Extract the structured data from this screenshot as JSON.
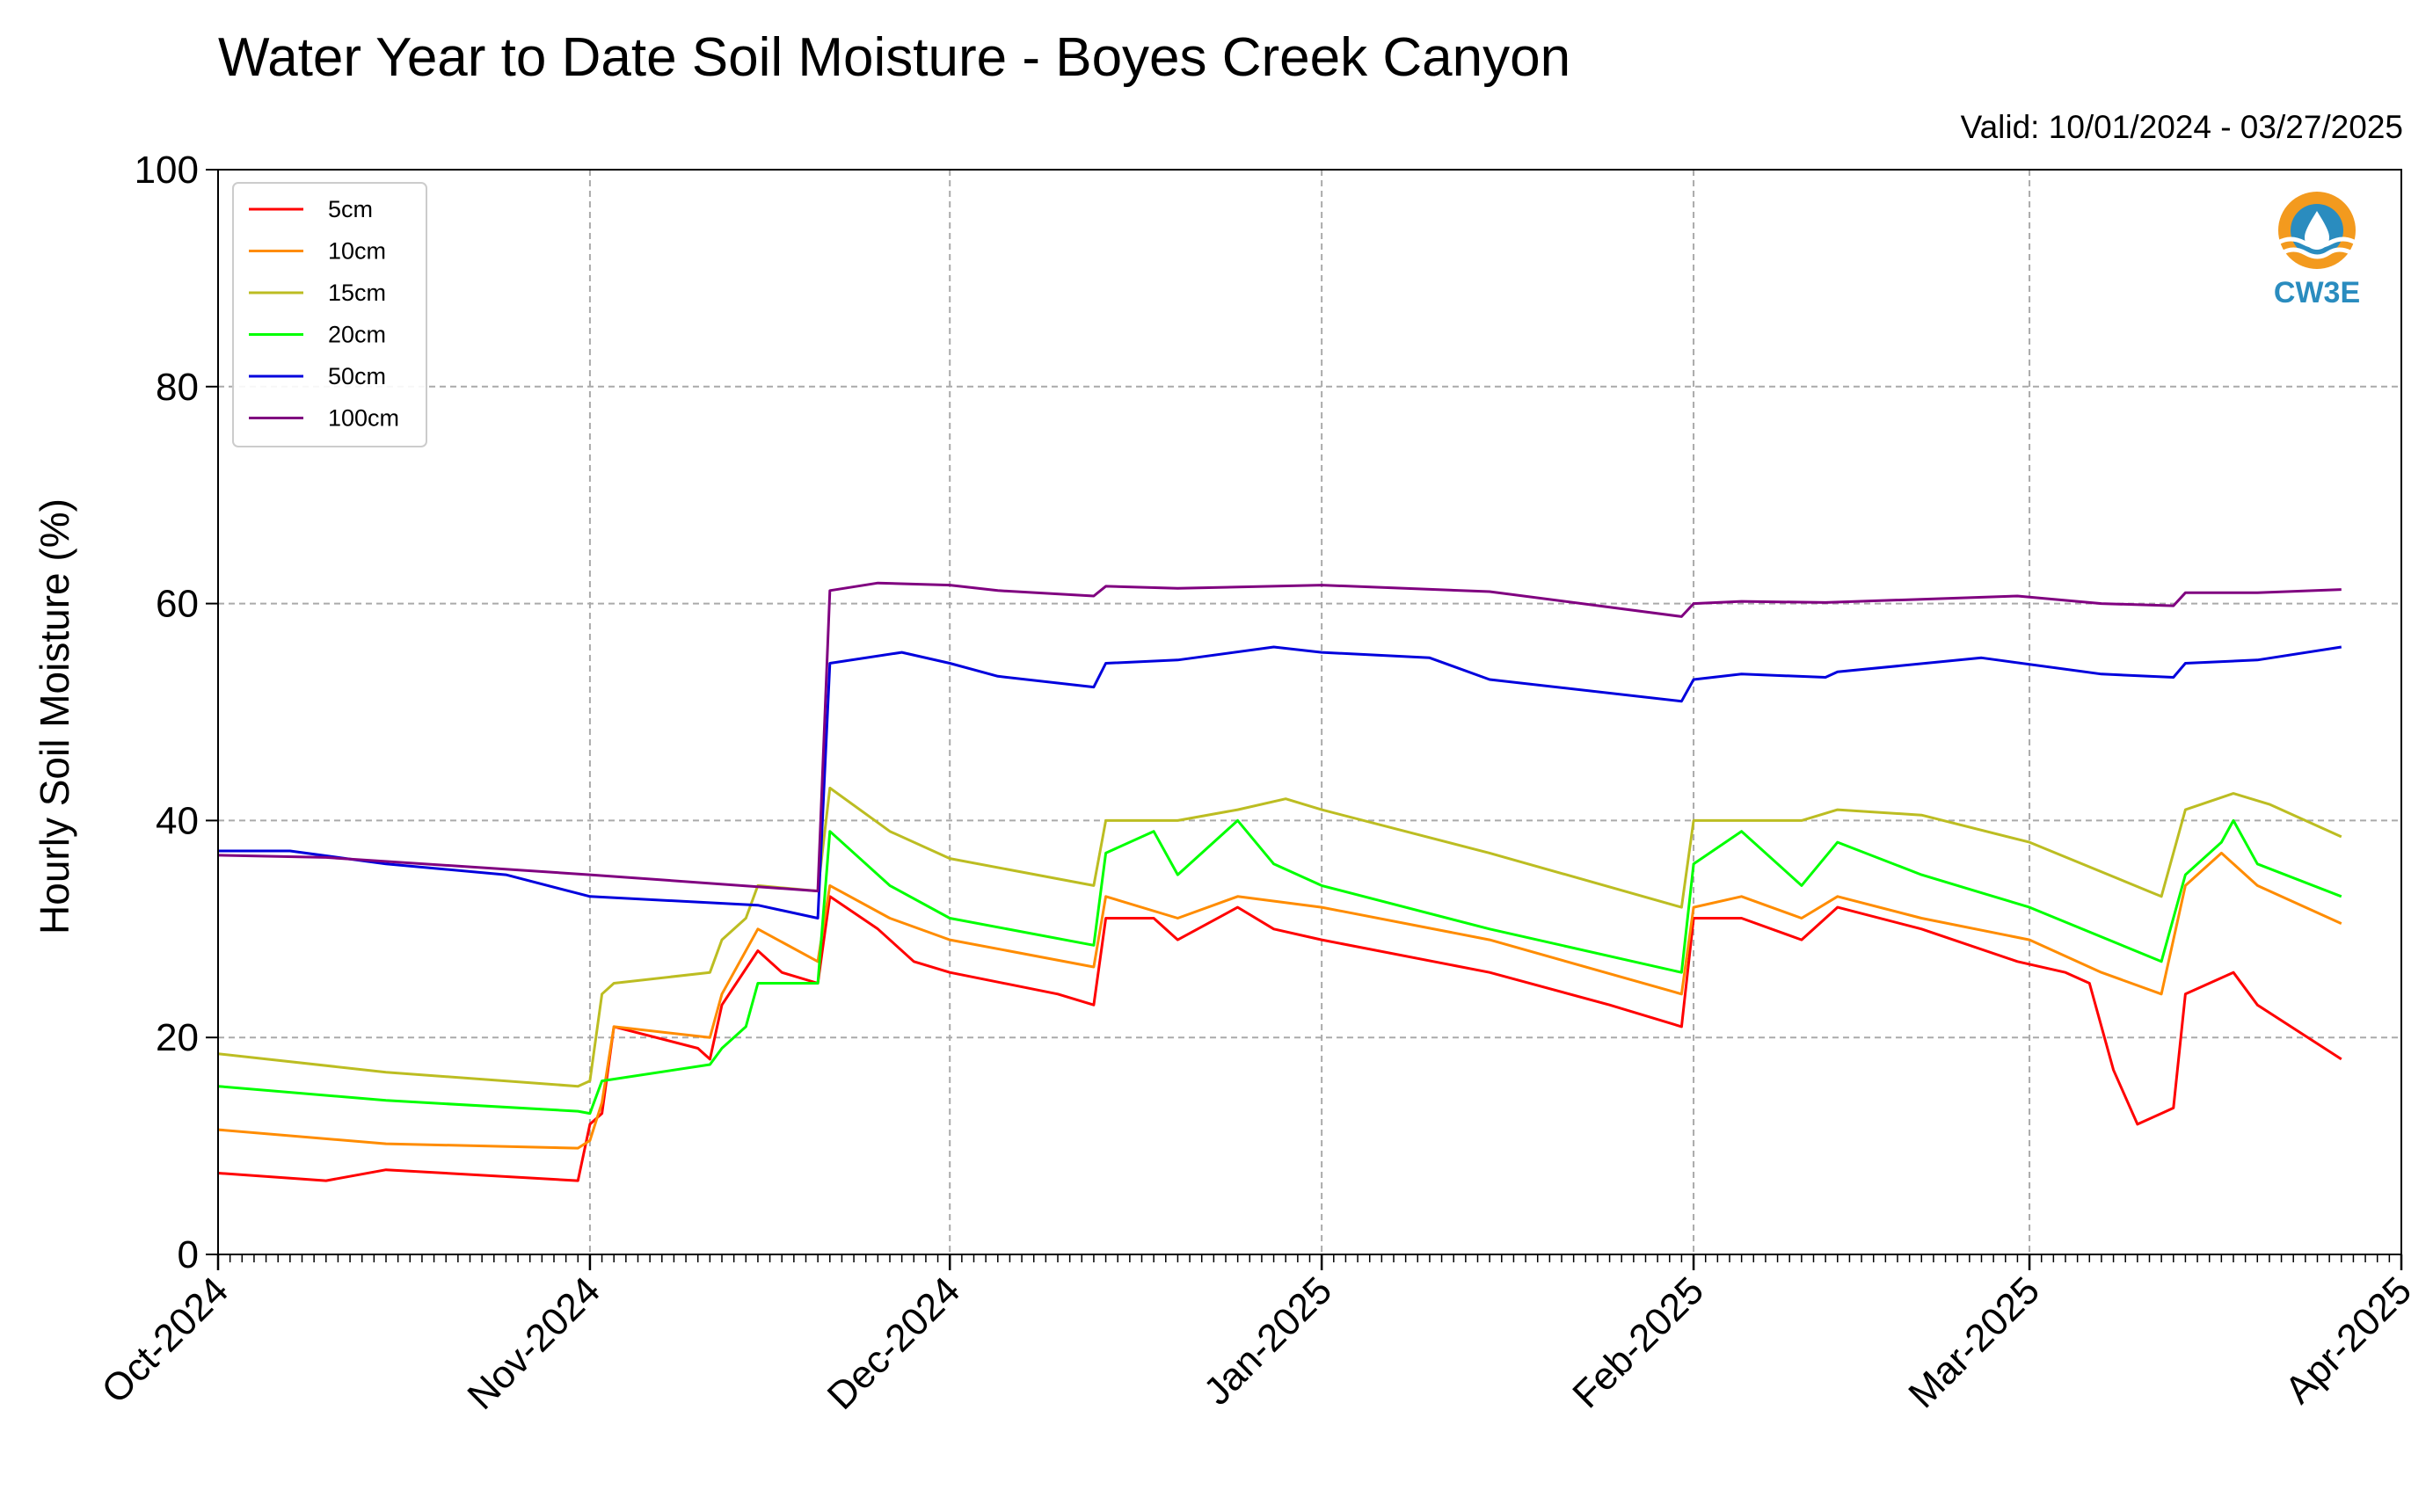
{
  "chart_data": {
    "type": "line",
    "title": "Water Year to Date Soil Moisture - Boyes Creek Canyon",
    "subtitle": "Valid: 10/01/2024 - 03/27/2025",
    "ylabel": "Hourly Soil Moisture (%)",
    "xlabel": "",
    "ylim": [
      0,
      100
    ],
    "yticks": [
      0,
      20,
      40,
      60,
      80,
      100
    ],
    "xlim": [
      "2024-10-01",
      "2025-04-01"
    ],
    "xticks": [
      {
        "date": "2024-10-01",
        "label": "Oct-2024"
      },
      {
        "date": "2024-11-01",
        "label": "Nov-2024"
      },
      {
        "date": "2024-12-01",
        "label": "Dec-2024"
      },
      {
        "date": "2025-01-01",
        "label": "Jan-2025"
      },
      {
        "date": "2025-02-01",
        "label": "Feb-2025"
      },
      {
        "date": "2025-03-01",
        "label": "Mar-2025"
      },
      {
        "date": "2025-04-01",
        "label": "Apr-2025"
      }
    ],
    "grid": true,
    "legend_position": "top-left",
    "series": [
      {
        "name": "5cm",
        "color": "#ff0000",
        "points": [
          [
            "2024-10-01",
            7.5
          ],
          [
            "2024-10-10",
            6.8
          ],
          [
            "2024-10-15",
            7.8
          ],
          [
            "2024-10-31",
            6.8
          ],
          [
            "2024-11-01",
            12
          ],
          [
            "2024-11-02",
            13
          ],
          [
            "2024-11-03",
            21
          ],
          [
            "2024-11-10",
            19
          ],
          [
            "2024-11-11",
            18
          ],
          [
            "2024-11-12",
            23
          ],
          [
            "2024-11-15",
            28
          ],
          [
            "2024-11-17",
            26
          ],
          [
            "2024-11-20",
            25
          ],
          [
            "2024-11-21",
            33
          ],
          [
            "2024-11-25",
            30
          ],
          [
            "2024-11-28",
            27
          ],
          [
            "2024-12-01",
            26
          ],
          [
            "2024-12-10",
            24
          ],
          [
            "2024-12-13",
            23
          ],
          [
            "2024-12-14",
            31
          ],
          [
            "2024-12-18",
            31
          ],
          [
            "2024-12-20",
            29
          ],
          [
            "2024-12-25",
            32
          ],
          [
            "2024-12-28",
            30
          ],
          [
            "2025-01-01",
            29
          ],
          [
            "2025-01-15",
            26
          ],
          [
            "2025-01-25",
            23
          ],
          [
            "2025-01-31",
            21
          ],
          [
            "2025-02-01",
            31
          ],
          [
            "2025-02-05",
            31
          ],
          [
            "2025-02-10",
            29
          ],
          [
            "2025-02-13",
            32
          ],
          [
            "2025-02-20",
            30
          ],
          [
            "2025-02-28",
            27
          ],
          [
            "2025-03-04",
            26
          ],
          [
            "2025-03-06",
            25
          ],
          [
            "2025-03-08",
            17
          ],
          [
            "2025-03-10",
            12
          ],
          [
            "2025-03-12",
            13
          ],
          [
            "2025-03-13",
            13.5
          ],
          [
            "2025-03-14",
            24
          ],
          [
            "2025-03-18",
            26
          ],
          [
            "2025-03-20",
            23
          ],
          [
            "2025-03-27",
            18
          ]
        ]
      },
      {
        "name": "10cm",
        "color": "#ff8c00",
        "points": [
          [
            "2024-10-01",
            11.5
          ],
          [
            "2024-10-15",
            10.2
          ],
          [
            "2024-10-31",
            9.8
          ],
          [
            "2024-11-01",
            10.5
          ],
          [
            "2024-11-02",
            14
          ],
          [
            "2024-11-03",
            21
          ],
          [
            "2024-11-11",
            20
          ],
          [
            "2024-11-12",
            24
          ],
          [
            "2024-11-15",
            30
          ],
          [
            "2024-11-20",
            27
          ],
          [
            "2024-11-21",
            34
          ],
          [
            "2024-11-26",
            31
          ],
          [
            "2024-12-01",
            29
          ],
          [
            "2024-12-13",
            26.5
          ],
          [
            "2024-12-14",
            33
          ],
          [
            "2024-12-20",
            31
          ],
          [
            "2024-12-25",
            33
          ],
          [
            "2025-01-01",
            32
          ],
          [
            "2025-01-15",
            29
          ],
          [
            "2025-01-31",
            24
          ],
          [
            "2025-02-01",
            32
          ],
          [
            "2025-02-05",
            33
          ],
          [
            "2025-02-10",
            31
          ],
          [
            "2025-02-13",
            33
          ],
          [
            "2025-02-20",
            31
          ],
          [
            "2025-03-01",
            29
          ],
          [
            "2025-03-07",
            26
          ],
          [
            "2025-03-12",
            24
          ],
          [
            "2025-03-14",
            34
          ],
          [
            "2025-03-17",
            37
          ],
          [
            "2025-03-20",
            34
          ],
          [
            "2025-03-27",
            30.5
          ]
        ]
      },
      {
        "name": "15cm",
        "color": "#bcbd22",
        "points": [
          [
            "2024-10-01",
            18.5
          ],
          [
            "2024-10-15",
            16.8
          ],
          [
            "2024-10-31",
            15.5
          ],
          [
            "2024-11-01",
            16
          ],
          [
            "2024-11-02",
            24
          ],
          [
            "2024-11-03",
            25
          ],
          [
            "2024-11-11",
            26
          ],
          [
            "2024-11-12",
            29
          ],
          [
            "2024-11-14",
            31
          ],
          [
            "2024-11-15",
            34
          ],
          [
            "2024-11-20",
            33.5
          ],
          [
            "2024-11-21",
            43
          ],
          [
            "2024-11-26",
            39
          ],
          [
            "2024-12-01",
            36.5
          ],
          [
            "2024-12-13",
            34
          ],
          [
            "2024-12-14",
            40
          ],
          [
            "2024-12-20",
            40
          ],
          [
            "2024-12-25",
            41
          ],
          [
            "2024-12-29",
            42
          ],
          [
            "2025-01-01",
            41
          ],
          [
            "2025-01-15",
            37
          ],
          [
            "2025-01-31",
            32
          ],
          [
            "2025-02-01",
            40
          ],
          [
            "2025-02-10",
            40
          ],
          [
            "2025-02-13",
            41
          ],
          [
            "2025-02-20",
            40.5
          ],
          [
            "2025-03-01",
            38
          ],
          [
            "2025-03-12",
            33
          ],
          [
            "2025-03-14",
            41
          ],
          [
            "2025-03-18",
            42.5
          ],
          [
            "2025-03-21",
            41.5
          ],
          [
            "2025-03-27",
            38.5
          ]
        ]
      },
      {
        "name": "20cm",
        "color": "#00ff00",
        "points": [
          [
            "2024-10-01",
            15.5
          ],
          [
            "2024-10-15",
            14.2
          ],
          [
            "2024-10-31",
            13.2
          ],
          [
            "2024-11-01",
            13
          ],
          [
            "2024-11-02",
            16
          ],
          [
            "2024-11-11",
            17.5
          ],
          [
            "2024-11-12",
            19
          ],
          [
            "2024-11-14",
            21
          ],
          [
            "2024-11-15",
            25
          ],
          [
            "2024-11-20",
            25
          ],
          [
            "2024-11-21",
            39
          ],
          [
            "2024-11-26",
            34
          ],
          [
            "2024-12-01",
            31
          ],
          [
            "2024-12-13",
            28.5
          ],
          [
            "2024-12-14",
            37
          ],
          [
            "2024-12-18",
            39
          ],
          [
            "2024-12-20",
            35
          ],
          [
            "2024-12-25",
            40
          ],
          [
            "2024-12-28",
            36
          ],
          [
            "2025-01-01",
            34
          ],
          [
            "2025-01-15",
            30
          ],
          [
            "2025-01-31",
            26
          ],
          [
            "2025-02-01",
            36
          ],
          [
            "2025-02-05",
            39
          ],
          [
            "2025-02-10",
            34
          ],
          [
            "2025-02-13",
            38
          ],
          [
            "2025-02-20",
            35
          ],
          [
            "2025-03-01",
            32
          ],
          [
            "2025-03-12",
            27
          ],
          [
            "2025-03-14",
            35
          ],
          [
            "2025-03-17",
            38
          ],
          [
            "2025-03-18",
            40
          ],
          [
            "2025-03-20",
            36
          ],
          [
            "2025-03-27",
            33
          ]
        ]
      },
      {
        "name": "50cm",
        "color": "#0000dd",
        "points": [
          [
            "2024-10-01",
            37.2
          ],
          [
            "2024-10-07",
            37.2
          ],
          [
            "2024-10-15",
            36
          ],
          [
            "2024-10-25",
            35
          ],
          [
            "2024-11-01",
            33
          ],
          [
            "2024-11-15",
            32.2
          ],
          [
            "2024-11-20",
            31
          ],
          [
            "2024-11-21",
            54.5
          ],
          [
            "2024-11-27",
            55.5
          ],
          [
            "2024-12-01",
            54.5
          ],
          [
            "2024-12-05",
            53.3
          ],
          [
            "2024-12-13",
            52.3
          ],
          [
            "2024-12-14",
            54.5
          ],
          [
            "2024-12-20",
            54.8
          ],
          [
            "2024-12-28",
            56
          ],
          [
            "2025-01-01",
            55.5
          ],
          [
            "2025-01-10",
            55
          ],
          [
            "2025-01-15",
            53
          ],
          [
            "2025-01-31",
            51
          ],
          [
            "2025-02-01",
            53
          ],
          [
            "2025-02-05",
            53.5
          ],
          [
            "2025-02-12",
            53.2
          ],
          [
            "2025-02-13",
            53.7
          ],
          [
            "2025-02-25",
            55
          ],
          [
            "2025-03-07",
            53.5
          ],
          [
            "2025-03-13",
            53.2
          ],
          [
            "2025-03-14",
            54.5
          ],
          [
            "2025-03-20",
            54.8
          ],
          [
            "2025-03-27",
            56
          ]
        ]
      },
      {
        "name": "100cm",
        "color": "#800080",
        "points": [
          [
            "2024-10-01",
            36.8
          ],
          [
            "2024-10-10",
            36.6
          ],
          [
            "2024-11-01",
            35
          ],
          [
            "2024-11-20",
            33.5
          ],
          [
            "2024-11-21",
            61.2
          ],
          [
            "2024-11-25",
            61.9
          ],
          [
            "2024-12-01",
            61.7
          ],
          [
            "2024-12-05",
            61.2
          ],
          [
            "2024-12-13",
            60.7
          ],
          [
            "2024-12-14",
            61.6
          ],
          [
            "2024-12-20",
            61.4
          ],
          [
            "2025-01-01",
            61.7
          ],
          [
            "2025-01-15",
            61.1
          ],
          [
            "2025-01-31",
            58.8
          ],
          [
            "2025-02-01",
            60
          ],
          [
            "2025-02-05",
            60.2
          ],
          [
            "2025-02-12",
            60.1
          ],
          [
            "2025-02-28",
            60.7
          ],
          [
            "2025-03-07",
            60
          ],
          [
            "2025-03-13",
            59.8
          ],
          [
            "2025-03-14",
            61
          ],
          [
            "2025-03-20",
            61
          ],
          [
            "2025-03-27",
            61.3
          ]
        ]
      }
    ]
  },
  "logo": {
    "text": "CW3E"
  }
}
